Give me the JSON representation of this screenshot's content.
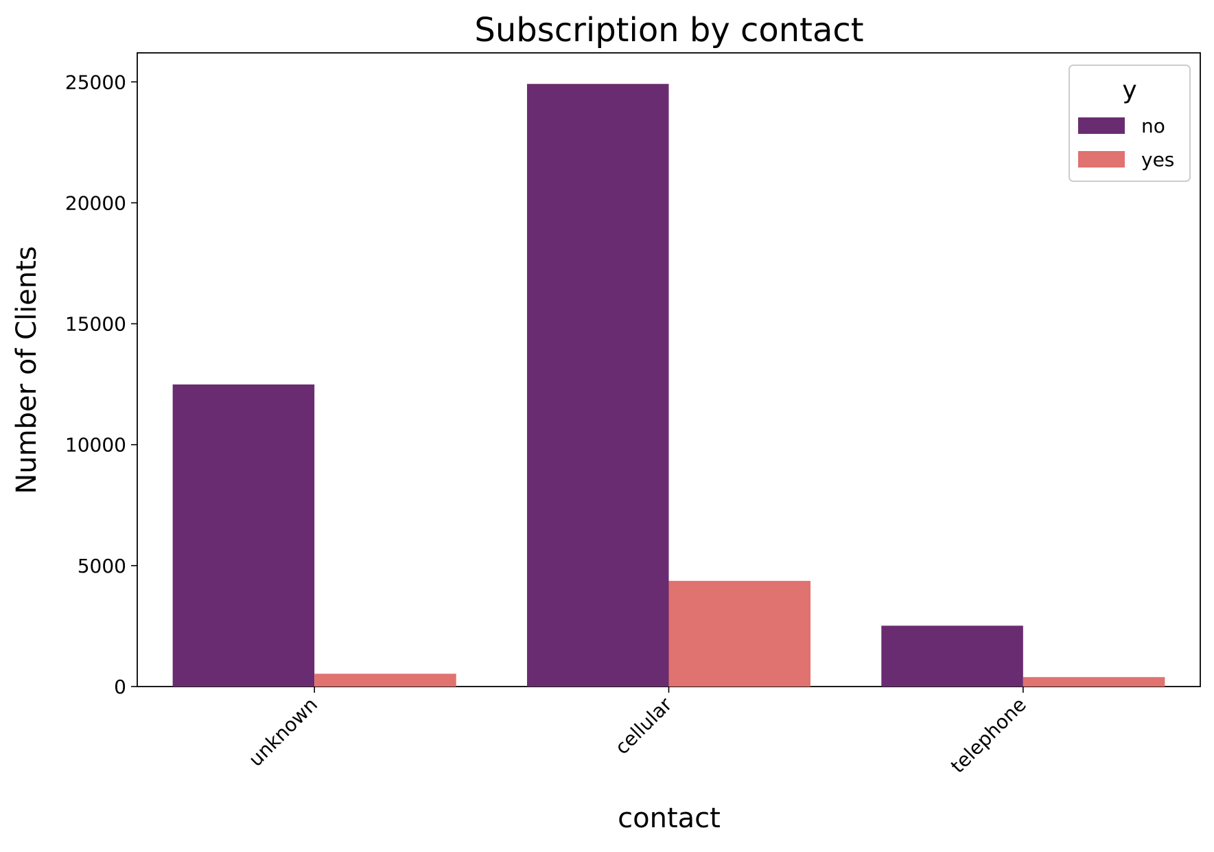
{
  "chart_data": {
    "type": "bar",
    "title": "Subscription by contact",
    "xlabel": "contact",
    "ylabel": "Number of Clients",
    "categories": [
      "unknown",
      "cellular",
      "telephone"
    ],
    "series": [
      {
        "name": "no",
        "values": [
          12490,
          24916,
          2516
        ],
        "color": "#6a2c70"
      },
      {
        "name": "yes",
        "values": [
          530,
          4369,
          390
        ],
        "color": "#e07270"
      }
    ],
    "ylim": [
      0,
      26200
    ],
    "yticks": [
      0,
      5000,
      10000,
      15000,
      20000,
      25000
    ],
    "grid": false,
    "legend": {
      "title": "y",
      "position": "top-right"
    }
  }
}
